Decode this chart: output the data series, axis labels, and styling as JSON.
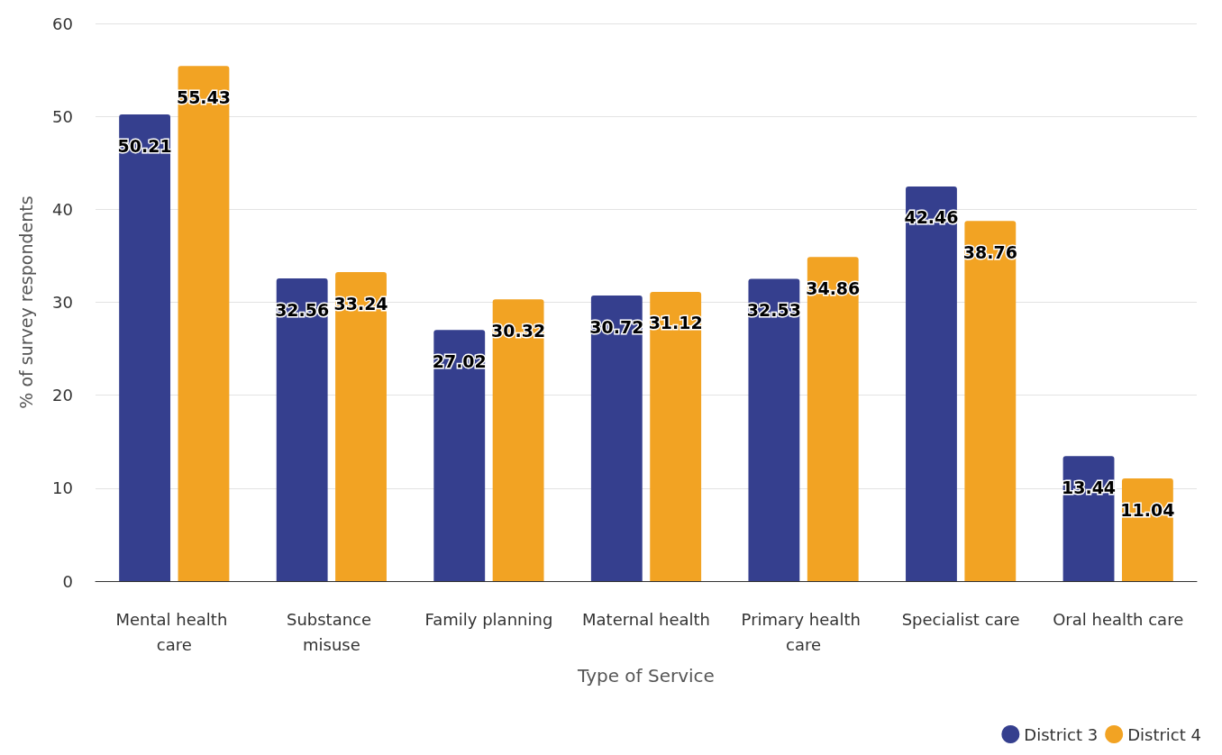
{
  "chart_data": {
    "type": "bar",
    "xlabel": "Type of Service",
    "ylabel": "% of survey respondents",
    "categories": [
      "Mental health care",
      "Substance misuse",
      "Family planning",
      "Maternal health",
      "Primary health care",
      "Specialist care",
      "Oral health care"
    ],
    "series": [
      {
        "name": "District 3",
        "color": "#353f8e",
        "values": [
          50.21,
          32.56,
          27.02,
          30.72,
          32.53,
          42.46,
          13.44
        ]
      },
      {
        "name": "District 4",
        "color": "#f2a323",
        "values": [
          55.43,
          33.24,
          30.32,
          31.12,
          34.86,
          38.76,
          11.04
        ]
      }
    ],
    "ylim": [
      0,
      60
    ],
    "yticks": [
      0,
      10,
      20,
      30,
      40,
      50,
      60
    ],
    "grid": "y",
    "legend": "bottom right",
    "data_labels": true
  }
}
